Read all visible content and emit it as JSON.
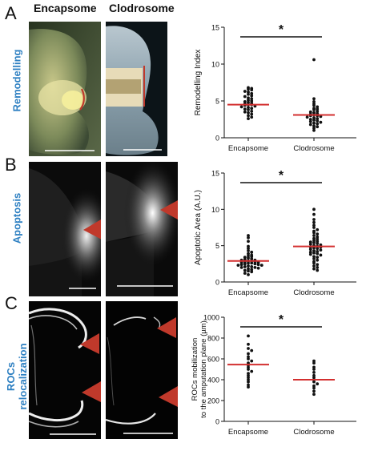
{
  "header": {
    "col1": "Encapsome",
    "col2": "Clodrosome"
  },
  "panels": [
    {
      "letter": "A",
      "row_label": "Remodelling",
      "chart_data": {
        "type": "scatter",
        "categories": [
          "Encapsome",
          "Clodrosome"
        ],
        "ylabel": "Remodelling Index",
        "ylim": [
          0,
          15
        ],
        "yticks": [
          "0",
          "5",
          "10",
          "15"
        ],
        "significance": "*",
        "series": [
          {
            "mean": 4.5,
            "values": [
              6.8,
              6.7,
              6.6,
              6.5,
              6.3,
              6.2,
              6.0,
              5.9,
              5.7,
              5.6,
              5.4,
              5.3,
              5.1,
              5.0,
              4.9,
              4.8,
              4.7,
              4.6,
              4.5,
              4.5,
              4.4,
              4.3,
              4.2,
              4.1,
              4.0,
              3.9,
              3.8,
              3.6,
              3.5,
              3.4,
              3.2,
              3.0,
              2.8,
              2.6
            ]
          },
          {
            "mean": 3.1,
            "values": [
              10.6,
              5.3,
              4.9,
              4.6,
              4.4,
              4.2,
              4.0,
              3.9,
              3.8,
              3.6,
              3.5,
              3.4,
              3.3,
              3.2,
              3.1,
              3.0,
              3.0,
              2.9,
              2.8,
              2.7,
              2.6,
              2.5,
              2.4,
              2.3,
              2.2,
              2.1,
              2.0,
              1.9,
              1.8,
              1.6,
              1.5,
              1.3,
              1.0
            ]
          }
        ]
      }
    },
    {
      "letter": "B",
      "row_label": "Apoptosis",
      "chart_data": {
        "type": "scatter",
        "categories": [
          "Encapsome",
          "Clodrosome"
        ],
        "ylabel": "Apoptotic Area (A.U.)",
        "ylim": [
          0,
          15
        ],
        "yticks": [
          "0",
          "5",
          "10",
          "15"
        ],
        "significance": "*",
        "series": [
          {
            "mean": 2.9,
            "values": [
              6.4,
              6.1,
              5.6,
              4.9,
              4.6,
              4.3,
              4.1,
              3.9,
              3.7,
              3.6,
              3.5,
              3.4,
              3.3,
              3.2,
              3.1,
              3.0,
              3.0,
              2.9,
              2.9,
              2.8,
              2.8,
              2.7,
              2.7,
              2.6,
              2.6,
              2.5,
              2.5,
              2.4,
              2.4,
              2.3,
              2.3,
              2.2,
              2.1,
              2.1,
              2.0,
              2.0,
              1.9,
              1.8,
              1.7,
              1.6,
              1.5,
              1.4,
              1.2,
              1.0
            ]
          },
          {
            "mean": 4.9,
            "values": [
              10.0,
              9.3,
              8.6,
              8.2,
              7.8,
              7.5,
              7.2,
              7.0,
              6.8,
              6.6,
              6.4,
              6.2,
              6.0,
              5.9,
              5.7,
              5.6,
              5.5,
              5.4,
              5.3,
              5.2,
              5.1,
              5.0,
              4.9,
              4.8,
              4.8,
              4.7,
              4.6,
              4.5,
              4.4,
              4.3,
              4.2,
              4.1,
              4.0,
              3.9,
              3.8,
              3.7,
              3.5,
              3.4,
              3.2,
              3.0,
              2.8,
              2.6,
              2.4,
              2.2,
              2.0,
              1.8,
              1.6
            ]
          }
        ]
      }
    },
    {
      "letter": "C",
      "row_label": "ROCs relocalization",
      "chart_data": {
        "type": "scatter",
        "categories": [
          "Encapsome",
          "Clodrosome"
        ],
        "ylabel_lines": [
          "ROCs mobilization",
          "to the amputation plane (µm)"
        ],
        "ylim": [
          0,
          1000
        ],
        "yticks": [
          "0",
          "200",
          "400",
          "600",
          "800",
          "1000"
        ],
        "significance": "*",
        "series": [
          {
            "mean": 545,
            "values": [
              820,
              740,
              700,
              680,
              650,
              620,
              600,
              580,
              560,
              540,
              520,
              500,
              480,
              460,
              440,
              420,
              400,
              380,
              350,
              330
            ]
          },
          {
            "mean": 400,
            "values": [
              580,
              560,
              520,
              500,
              470,
              440,
              420,
              400,
              380,
              360,
              340,
              320,
              290,
              260
            ]
          }
        ]
      }
    }
  ]
}
